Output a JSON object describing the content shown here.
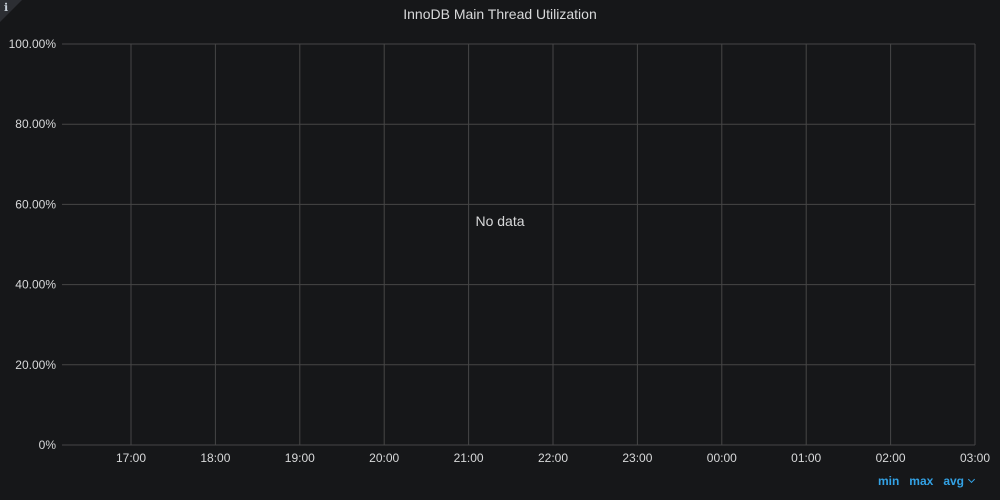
{
  "panel": {
    "title": "InnoDB Main Thread Utilization",
    "info_icon": "info-icon",
    "no_data_text": "No data"
  },
  "legend": {
    "min_label": "min",
    "max_label": "max",
    "avg_label": "avg",
    "avg_icon": "chevron-down-icon"
  },
  "colors": {
    "background": "#161719",
    "grid": "#464646",
    "text": "#d8d9da",
    "legend_link": "#33a2e5"
  },
  "chart_data": {
    "type": "line",
    "title": "InnoDB Main Thread Utilization",
    "series": [],
    "y_ticks": [
      "0%",
      "20.00%",
      "40.00%",
      "60.00%",
      "80.00%",
      "100.00%"
    ],
    "ylim": [
      0,
      100
    ],
    "x_ticks": [
      "17:00",
      "18:00",
      "19:00",
      "20:00",
      "21:00",
      "22:00",
      "23:00",
      "00:00",
      "01:00",
      "02:00",
      "03:00"
    ],
    "grid": true,
    "legend_placement": "bottom-right"
  }
}
